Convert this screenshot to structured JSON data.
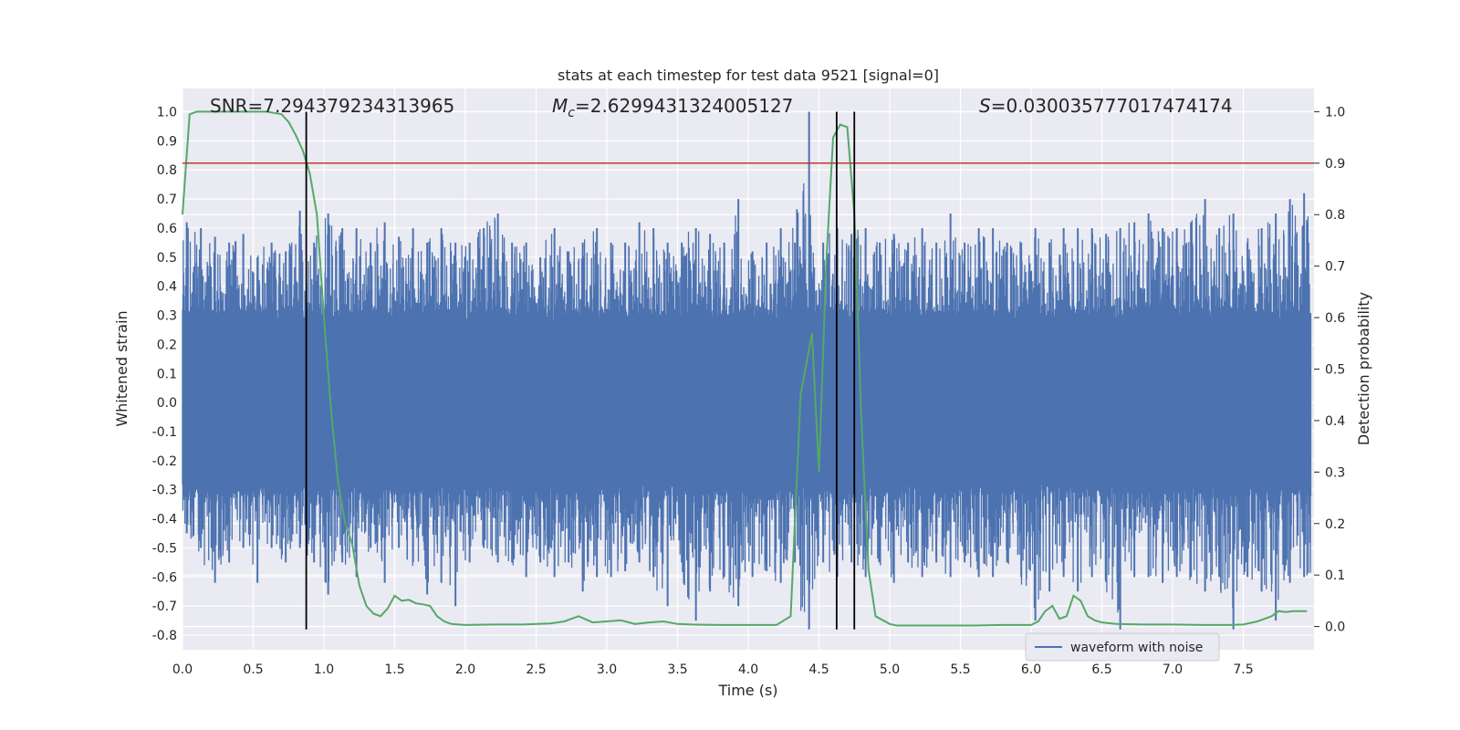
{
  "chart_data": {
    "type": "line",
    "title": "stats at each timestep for test data 9521 [signal=0]",
    "xlabel": "Time (s)",
    "ylabel": "Whitened strain",
    "ylabel_right": "Detection probability",
    "xlim": [
      0.0,
      8.0
    ],
    "ylim": [
      -0.85,
      1.08
    ],
    "ylim_right": [
      -0.045,
      1.045
    ],
    "x_ticks": [
      "0.0",
      "0.5",
      "1.0",
      "1.5",
      "2.0",
      "2.5",
      "3.0",
      "3.5",
      "4.0",
      "4.5",
      "5.0",
      "5.5",
      "6.0",
      "6.5",
      "7.0",
      "7.5"
    ],
    "y_ticks": [
      "-0.8",
      "-0.7",
      "-0.6",
      "-0.5",
      "-0.4",
      "-0.3",
      "-0.2",
      "-0.1",
      "0.0",
      "0.1",
      "0.2",
      "0.3",
      "0.4",
      "0.5",
      "0.6",
      "0.7",
      "0.8",
      "0.9",
      "1.0"
    ],
    "y_ticks_right": [
      "0.0",
      "0.1",
      "0.2",
      "0.3",
      "0.4",
      "0.5",
      "0.6",
      "0.7",
      "0.8",
      "0.9",
      "1.0"
    ],
    "grid": true,
    "legend_position": "lower-right",
    "annotations": {
      "snr": "SNR=7.294379234313965",
      "mc_symbol": "M",
      "mc_sub": "c",
      "mc_value": "=2.6299431324005127",
      "s_symbol": "S",
      "s_value": "=0.030035777017474174"
    },
    "threshold": {
      "value": 0.9,
      "axis": "right",
      "color": "#c0392b"
    },
    "vertical_lines": [
      0.875,
      4.625,
      4.75
    ],
    "vertical_line_range": [
      -0.78,
      1.0
    ],
    "series": [
      {
        "name": "waveform with noise",
        "color": "#4c72b0",
        "axis": "left",
        "envelope": {
          "x": [
            0.0,
            0.1,
            0.2,
            0.3,
            0.4,
            0.5,
            0.6,
            0.7,
            0.8,
            0.9,
            1.0,
            1.1,
            1.2,
            1.3,
            1.4,
            1.5,
            1.6,
            1.7,
            1.8,
            1.9,
            2.0,
            2.1,
            2.2,
            2.3,
            2.4,
            2.5,
            2.6,
            2.7,
            2.8,
            2.9,
            3.0,
            3.1,
            3.2,
            3.3,
            3.4,
            3.5,
            3.6,
            3.7,
            3.8,
            3.9,
            4.0,
            4.1,
            4.2,
            4.3,
            4.4,
            4.5,
            4.6,
            4.7,
            4.8,
            4.9,
            5.0,
            5.1,
            5.2,
            5.3,
            5.4,
            5.5,
            5.6,
            5.7,
            5.8,
            5.9,
            6.0,
            6.1,
            6.2,
            6.3,
            6.4,
            6.5,
            6.6,
            6.7,
            6.8,
            6.9,
            7.0,
            7.1,
            7.2,
            7.3,
            7.4,
            7.5,
            7.6,
            7.7,
            7.8,
            7.9,
            8.0
          ],
          "upper": [
            0.62,
            0.6,
            0.57,
            0.55,
            0.58,
            0.5,
            0.55,
            0.52,
            0.66,
            0.55,
            0.65,
            0.6,
            0.6,
            0.55,
            0.62,
            0.57,
            0.6,
            0.55,
            0.6,
            0.55,
            0.55,
            0.6,
            0.65,
            0.55,
            0.55,
            0.5,
            0.6,
            0.52,
            0.55,
            0.6,
            0.55,
            0.55,
            0.62,
            0.6,
            0.55,
            0.55,
            0.6,
            0.58,
            0.55,
            0.7,
            0.52,
            0.55,
            0.6,
            0.55,
            1.0,
            0.55,
            0.6,
            0.58,
            0.6,
            0.55,
            0.58,
            0.55,
            0.6,
            0.55,
            0.65,
            0.55,
            0.6,
            0.6,
            0.55,
            0.55,
            0.6,
            0.55,
            0.6,
            0.6,
            0.6,
            0.58,
            0.6,
            0.62,
            0.65,
            0.6,
            0.6,
            0.62,
            0.7,
            0.6,
            0.65,
            0.55,
            0.6,
            0.65,
            0.7,
            0.72,
            0.6
          ],
          "lower": [
            -0.45,
            -0.5,
            -0.62,
            -0.55,
            -0.5,
            -0.62,
            -0.5,
            -0.55,
            -0.5,
            -0.55,
            -0.66,
            -0.55,
            -0.6,
            -0.5,
            -0.62,
            -0.5,
            -0.55,
            -0.66,
            -0.62,
            -0.7,
            -0.55,
            -0.5,
            -0.55,
            -0.55,
            -0.6,
            -0.55,
            -0.6,
            -0.55,
            -0.65,
            -0.6,
            -0.6,
            -0.58,
            -0.55,
            -0.6,
            -0.7,
            -0.55,
            -0.75,
            -0.65,
            -0.6,
            -0.7,
            -0.6,
            -0.58,
            -0.62,
            -0.55,
            -0.78,
            -0.55,
            -0.6,
            -0.55,
            -0.6,
            -0.55,
            -0.62,
            -0.55,
            -0.6,
            -0.55,
            -0.6,
            -0.55,
            -0.6,
            -0.6,
            -0.55,
            -0.6,
            -0.75,
            -0.65,
            -0.6,
            -0.65,
            -0.6,
            -0.6,
            -0.78,
            -0.6,
            -0.6,
            -0.62,
            -0.6,
            -0.6,
            -0.65,
            -0.6,
            -0.78,
            -0.6,
            -0.65,
            -0.75,
            -0.62,
            -0.6,
            -0.6
          ]
        }
      },
      {
        "name": "",
        "color": "#55a868",
        "axis": "right",
        "x": [
          0.0,
          0.05,
          0.1,
          0.2,
          0.3,
          0.4,
          0.5,
          0.6,
          0.7,
          0.75,
          0.8,
          0.85,
          0.9,
          0.95,
          1.0,
          1.05,
          1.1,
          1.15,
          1.2,
          1.25,
          1.3,
          1.35,
          1.4,
          1.45,
          1.5,
          1.55,
          1.6,
          1.65,
          1.7,
          1.75,
          1.8,
          1.85,
          1.9,
          2.0,
          2.2,
          2.4,
          2.6,
          2.7,
          2.8,
          2.9,
          3.0,
          3.1,
          3.2,
          3.3,
          3.4,
          3.5,
          3.6,
          3.8,
          4.0,
          4.2,
          4.3,
          4.37,
          4.45,
          4.5,
          4.55,
          4.6,
          4.65,
          4.7,
          4.75,
          4.8,
          4.85,
          4.9,
          5.0,
          5.05,
          5.1,
          5.2,
          5.4,
          5.6,
          5.8,
          6.0,
          6.05,
          6.1,
          6.15,
          6.2,
          6.25,
          6.3,
          6.35,
          6.4,
          6.45,
          6.5,
          6.6,
          6.8,
          7.0,
          7.2,
          7.4,
          7.5,
          7.6,
          7.7,
          7.75,
          7.8,
          7.85,
          7.9,
          7.95
        ],
        "y": [
          0.8,
          0.995,
          1.0,
          1.0,
          1.0,
          1.0,
          1.0,
          1.0,
          0.995,
          0.98,
          0.955,
          0.925,
          0.88,
          0.8,
          0.6,
          0.42,
          0.28,
          0.2,
          0.16,
          0.08,
          0.04,
          0.025,
          0.02,
          0.035,
          0.06,
          0.05,
          0.052,
          0.045,
          0.043,
          0.04,
          0.02,
          0.01,
          0.005,
          0.003,
          0.004,
          0.004,
          0.006,
          0.01,
          0.02,
          0.008,
          0.01,
          0.012,
          0.005,
          0.008,
          0.01,
          0.005,
          0.004,
          0.003,
          0.003,
          0.003,
          0.02,
          0.45,
          0.57,
          0.3,
          0.7,
          0.95,
          0.975,
          0.97,
          0.8,
          0.4,
          0.11,
          0.02,
          0.005,
          0.002,
          0.002,
          0.002,
          0.002,
          0.002,
          0.003,
          0.003,
          0.01,
          0.03,
          0.04,
          0.015,
          0.02,
          0.06,
          0.05,
          0.02,
          0.012,
          0.008,
          0.005,
          0.004,
          0.004,
          0.003,
          0.003,
          0.004,
          0.01,
          0.02,
          0.03,
          0.028,
          0.03,
          0.03,
          0.03
        ]
      }
    ]
  }
}
